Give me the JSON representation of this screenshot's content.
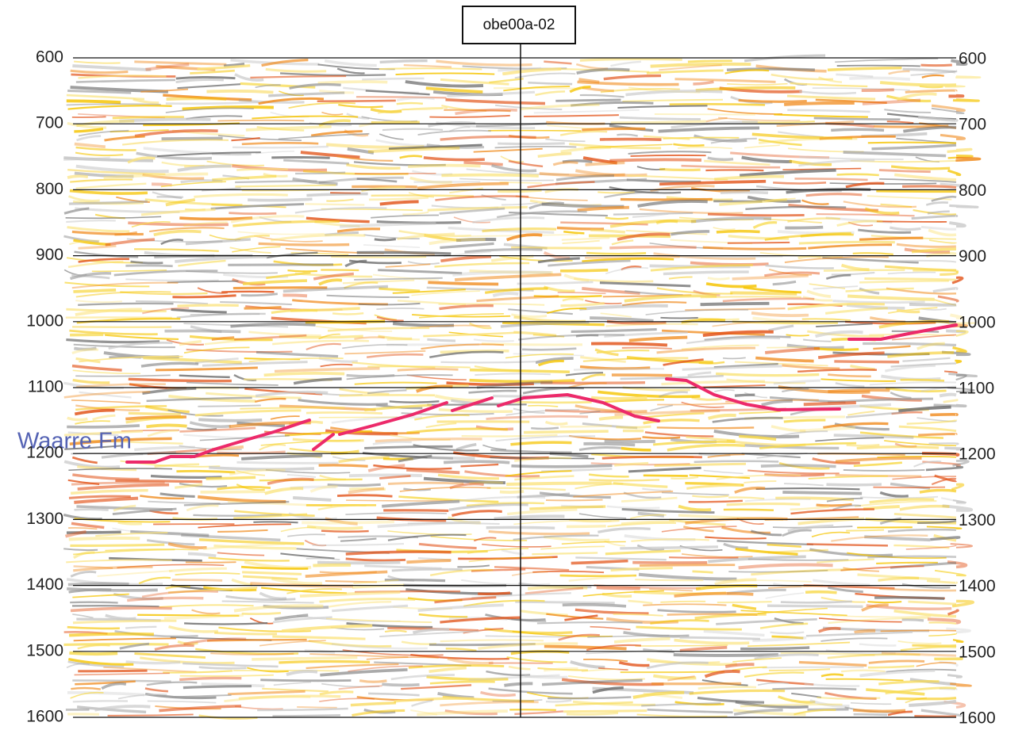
{
  "chart_data": {
    "type": "seismic",
    "well_label": "obe00a-02",
    "annotation": "Waarre Fm",
    "ylim": [
      600,
      1600
    ],
    "yticks": [
      600,
      700,
      800,
      900,
      1000,
      1100,
      1200,
      1300,
      1400,
      1500,
      1600
    ],
    "grid": true
  }
}
